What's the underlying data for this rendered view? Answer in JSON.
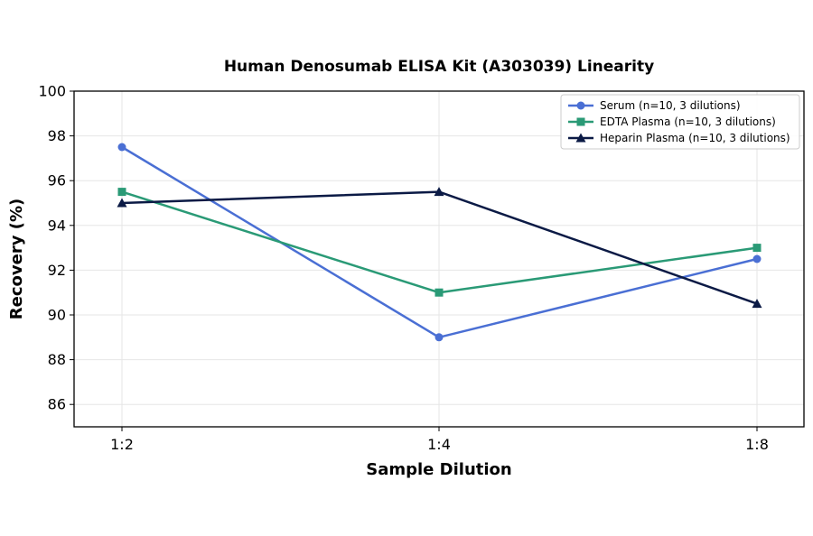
{
  "chart_data": {
    "type": "line",
    "title": "Human Denosumab ELISA Kit (A303039) Linearity",
    "xlabel": "Sample Dilution",
    "ylabel": "Recovery (%)",
    "categories": [
      "1:2",
      "1:4",
      "1:8"
    ],
    "ylim": [
      85,
      100
    ],
    "yticks": [
      86,
      88,
      90,
      92,
      94,
      96,
      98,
      100
    ],
    "grid": true,
    "legend_position": "top-right",
    "series": [
      {
        "name": "Serum (n=10, 3 dilutions)",
        "values": [
          97.5,
          89.0,
          92.5
        ],
        "color": "#4a6fd4",
        "marker": "circle"
      },
      {
        "name": "EDTA Plasma (n=10, 3 dilutions)",
        "values": [
          95.5,
          91.0,
          93.0
        ],
        "color": "#2a9a76",
        "marker": "square"
      },
      {
        "name": "Heparin Plasma (n=10, 3 dilutions)",
        "values": [
          95.0,
          95.5,
          90.5
        ],
        "color": "#0b1a45",
        "marker": "triangle"
      }
    ]
  }
}
